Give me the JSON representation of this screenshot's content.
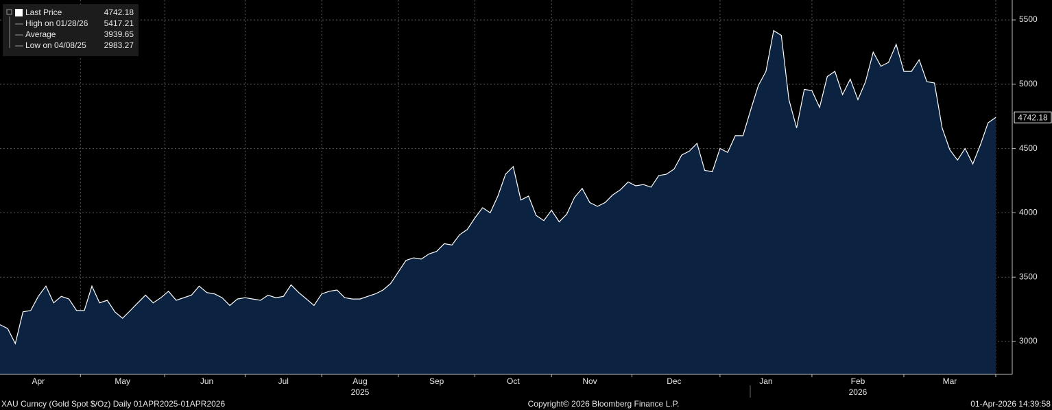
{
  "chart_data": {
    "type": "area",
    "series": [
      {
        "name": "Last Price",
        "color": "#ffffff",
        "fill": "#0b2341",
        "values": [
          3130,
          3100,
          2983.27,
          3230,
          3240,
          3350,
          3430,
          3300,
          3350,
          3330,
          3240,
          3240,
          3430,
          3300,
          3320,
          3230,
          3180,
          3240,
          3300,
          3360,
          3300,
          3340,
          3390,
          3320,
          3340,
          3360,
          3430,
          3380,
          3370,
          3340,
          3280,
          3330,
          3340,
          3330,
          3320,
          3360,
          3340,
          3350,
          3440,
          3380,
          3330,
          3280,
          3370,
          3390,
          3400,
          3340,
          3330,
          3330,
          3350,
          3370,
          3400,
          3450,
          3540,
          3630,
          3650,
          3640,
          3680,
          3700,
          3760,
          3750,
          3830,
          3870,
          3960,
          4040,
          4000,
          4130,
          4300,
          4360,
          4100,
          4130,
          3980,
          3940,
          4020,
          3930,
          3990,
          4120,
          4190,
          4080,
          4050,
          4080,
          4140,
          4180,
          4240,
          4210,
          4220,
          4200,
          4290,
          4300,
          4340,
          4450,
          4480,
          4540,
          4330,
          4320,
          4500,
          4470,
          4600,
          4600,
          4800,
          4990,
          5100,
          5417.21,
          5380,
          4880,
          4660,
          4960,
          4950,
          4820,
          5060,
          5100,
          4920,
          5040,
          4880,
          5020,
          5250,
          5140,
          5170,
          5310,
          5100,
          5100,
          5190,
          5020,
          5010,
          4660,
          4490,
          4410,
          4500,
          4380,
          4530,
          4700,
          4742.18
        ]
      }
    ],
    "categories": [
      null,
      null,
      null,
      null,
      null,
      "Apr",
      null,
      null,
      null,
      null,
      null,
      null,
      null,
      null,
      null,
      null,
      "May",
      null,
      null,
      null,
      null,
      null,
      null,
      null,
      null,
      null,
      null,
      "Jun",
      null,
      null,
      null,
      null,
      null,
      null,
      null,
      null,
      null,
      "Jul",
      null,
      null,
      null,
      null,
      null,
      null,
      null,
      null,
      null,
      "Aug",
      null,
      null,
      null,
      null,
      null,
      null,
      null,
      null,
      null,
      "Sep",
      null,
      null,
      null,
      null,
      null,
      null,
      null,
      null,
      null,
      "Oct",
      null,
      null,
      null,
      null,
      null,
      null,
      null,
      null,
      null,
      "Nov",
      null,
      null,
      null,
      null,
      null,
      null,
      null,
      null,
      null,
      null,
      "Dec",
      null,
      null,
      null,
      null,
      null,
      null,
      null,
      null,
      null,
      null,
      null,
      "Jan",
      null,
      null,
      null,
      null,
      null,
      null,
      null,
      null,
      null,
      null,
      null,
      "Feb",
      null,
      null,
      null,
      null,
      null,
      null,
      null,
      null,
      null,
      null,
      null,
      "Mar",
      null,
      null,
      null,
      null,
      null,
      null
    ],
    "year_labels": [
      {
        "label": "2025",
        "category": "Aug"
      },
      {
        "label": "2026",
        "category": "Feb"
      }
    ],
    "ylim": [
      2744,
      5655
    ],
    "yticks": [
      3000,
      3500,
      4000,
      4500,
      5000,
      5500
    ],
    "grid": true,
    "stats": [
      {
        "label": "High on 01/28/26",
        "value": 5417.21
      },
      {
        "label": "Average",
        "value": 3939.65
      },
      {
        "label": "Low on 04/08/25",
        "value": 2983.27
      }
    ],
    "footer": {
      "left": "XAU Curncy (Gold Spot  $/Oz) Daily 01APR2025-01APR2026",
      "center": "Copyright© 2026 Bloomberg Finance L.P.",
      "right": "01-Apr-2026 14:39:58"
    }
  }
}
